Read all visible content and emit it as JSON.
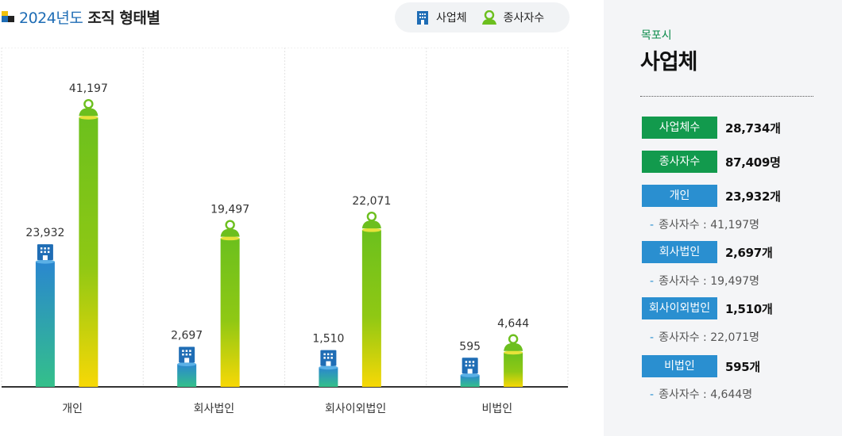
{
  "header": {
    "year": "2024년도",
    "title": "조직 형태별"
  },
  "legend": {
    "business_label": "사업체",
    "employee_label": "종사자수"
  },
  "colors": {
    "business_top": "#2a87cf",
    "business_bottom": "#34c08a",
    "employee_top": "#6cc01d",
    "employee_bottom": "#f7d806",
    "axis": "#333333",
    "divider": "#e3e3e3"
  },
  "chart_data": {
    "type": "bar",
    "categories": [
      "개인",
      "회사법인",
      "회사이외법인",
      "비법인"
    ],
    "series": [
      {
        "name": "사업체",
        "values": [
          23932,
          2697,
          1510,
          595
        ],
        "labels": [
          "23,932",
          "2,697",
          "1,510",
          "595"
        ],
        "display_level": [
          0.376,
          0.068,
          0.058,
          0.035
        ]
      },
      {
        "name": "종사자수",
        "values": [
          41197,
          19497,
          22071,
          4644
        ],
        "labels": [
          "41,197",
          "19,497",
          "22,071",
          "4,644"
        ],
        "display_level": [
          0.809,
          0.446,
          0.471,
          0.103
        ]
      }
    ],
    "grid": false,
    "legend_position": "top-right"
  },
  "panel": {
    "region": "목포시",
    "title": "사업체",
    "stats": [
      {
        "label": "사업체수",
        "value": "28,734개",
        "color": "green"
      },
      {
        "label": "종사자수",
        "value": "87,409명",
        "color": "green"
      },
      {
        "label": "개인",
        "value": "23,932개",
        "color": "blue",
        "sub": "종사자수 : 41,197명"
      },
      {
        "label": "회사법인",
        "value": "2,697개",
        "color": "blue",
        "sub": "종사자수 : 19,497명"
      },
      {
        "label": "회사이외법인",
        "value": "1,510개",
        "color": "blue",
        "sub": "종사자수 : 22,071명"
      },
      {
        "label": "비법인",
        "value": "595개",
        "color": "blue",
        "sub": "종사자수 : 4,644명"
      }
    ]
  }
}
